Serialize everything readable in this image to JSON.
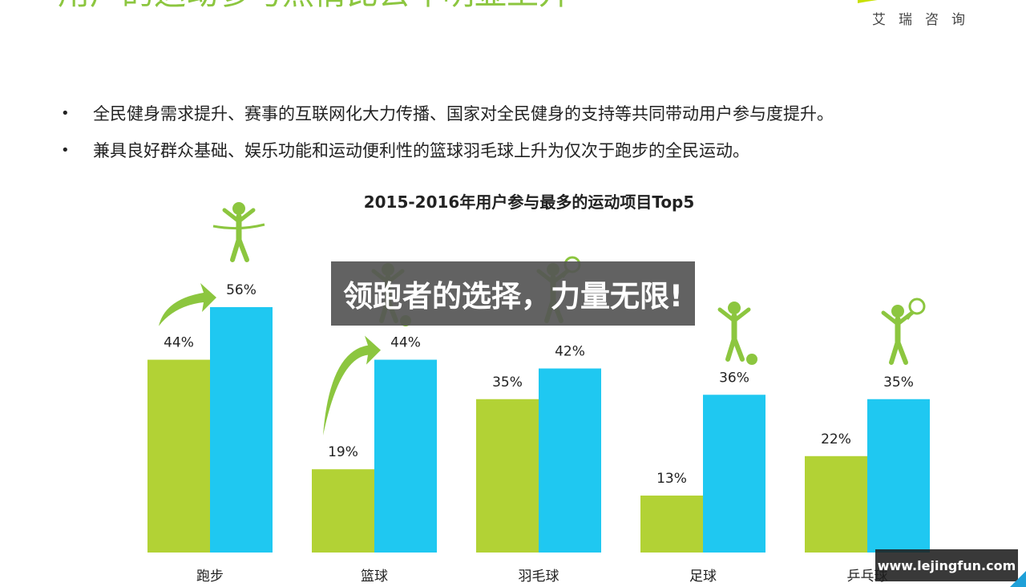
{
  "slide": {
    "title": "用户的运动参与热情比去年明显上升",
    "brand": "艾瑞咨询",
    "bullets": [
      "全民健身需求提升、赛事的互联网化大力传播、国家对全民健身的支持等共同带动用户参与度提升。",
      "兼具良好群众基础、娱乐功能和运动便利性的篮球羽毛球上升为仅次于跑步的全民运动。"
    ],
    "bullet_symbol": "•"
  },
  "chart_data": {
    "type": "bar",
    "title": "2015-2016年用户参与最多的运动项目Top5",
    "categories": [
      "跑步",
      "篮球",
      "羽毛球",
      "足球",
      "乒乓球"
    ],
    "series": [
      {
        "values": [
          44,
          19,
          35,
          13,
          22
        ],
        "color": "#b2d235"
      },
      {
        "values": [
          56,
          44,
          42,
          36,
          35
        ],
        "color": "#1fc8f1"
      }
    ],
    "value_labels": [
      [
        "44%",
        "19%",
        "35%",
        "13%",
        "22%"
      ],
      [
        "56%",
        "44%",
        "42%",
        "36%",
        "35%"
      ]
    ],
    "ylim": [
      0,
      56
    ],
    "grid": false,
    "legend": "none",
    "icons": [
      "runner-finish-icon",
      "basketball-player-icon",
      "badminton-player-icon",
      "soccer-player-icon",
      "table-tennis-player-icon"
    ],
    "rise_arrows": [
      "跑步",
      "篮球"
    ],
    "arrow_color": "#8cc63f"
  },
  "overlay": {
    "banner_text": "领跑者的选择，力量无限!",
    "watermark": "www.lejingfun.com"
  }
}
